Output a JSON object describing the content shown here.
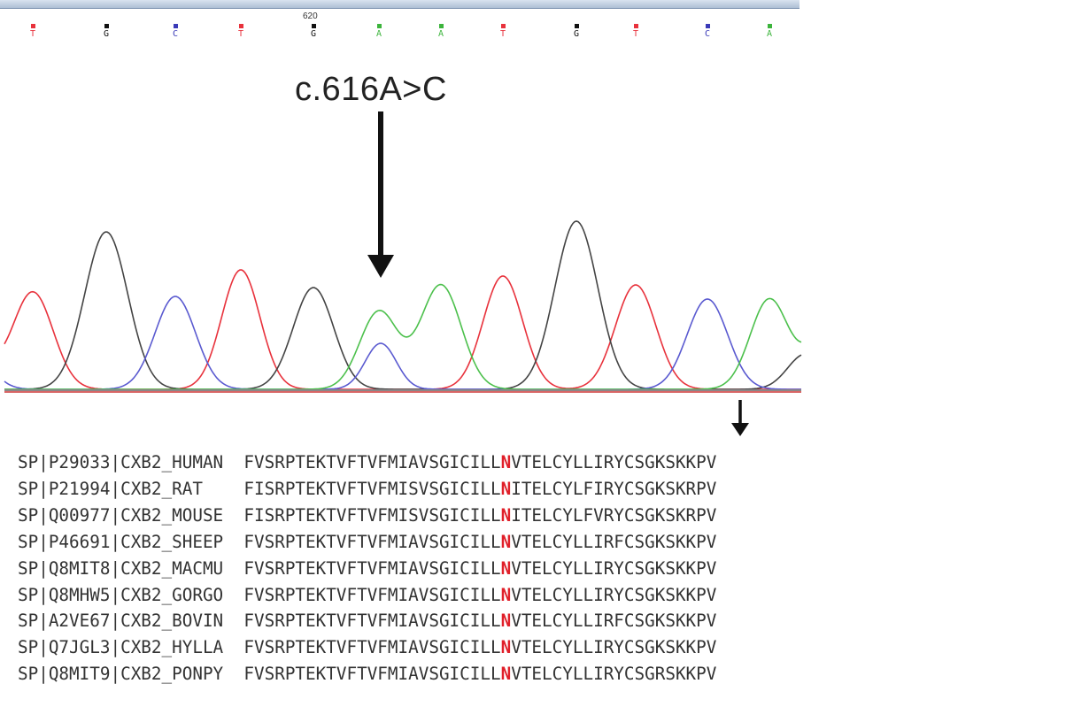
{
  "position_label": "620",
  "mutation_label": "c.616A>C",
  "base_calls": [
    {
      "letter": "T",
      "color": "#e8323c"
    },
    {
      "letter": "G",
      "color": "#111111"
    },
    {
      "letter": "C",
      "color": "#3a3ab8"
    },
    {
      "letter": "T",
      "color": "#e8323c"
    },
    {
      "letter": "G",
      "color": "#111111"
    },
    {
      "letter": "A",
      "color": "#3cb43c"
    },
    {
      "letter": "A",
      "color": "#3cb43c"
    },
    {
      "letter": "T",
      "color": "#e8323c"
    },
    {
      "letter": "G",
      "color": "#111111"
    },
    {
      "letter": "T",
      "color": "#e8323c"
    },
    {
      "letter": "C",
      "color": "#3a3ab8"
    },
    {
      "letter": "A",
      "color": "#3cb43c"
    }
  ],
  "trace_colors": {
    "T": "#e8323c",
    "G": "#444444",
    "C": "#5a5ad0",
    "A": "#4cc04c"
  },
  "highlight_color": "#e0202a",
  "alignment": [
    {
      "id": "SP|P29033|CXB2_HUMAN",
      "prefix": "FVSRPTEKTVFTVFMIAVSGICILL",
      "residue": "N",
      "suffix": "VTELCYLLIRYCSGKSKKPV"
    },
    {
      "id": "SP|P21994|CXB2_RAT",
      "prefix": "FISRPTEKTVFTVFMISVSGICILL",
      "residue": "N",
      "suffix": "ITELCYLFIRYCSGKSKRPV"
    },
    {
      "id": "SP|Q00977|CXB2_MOUSE",
      "prefix": "FISRPTEKTVFTVFMISVSGICILL",
      "residue": "N",
      "suffix": "ITELCYLFVRYCSGKSKRPV"
    },
    {
      "id": "SP|P46691|CXB2_SHEEP",
      "prefix": "FVSRPTEKTVFTVFMIAVSGICILL",
      "residue": "N",
      "suffix": "VTELCYLLIRFCSGKSKKPV"
    },
    {
      "id": "SP|Q8MIT8|CXB2_MACMU",
      "prefix": "FVSRPTEKTVFTVFMIAVSGICILL",
      "residue": "N",
      "suffix": "VTELCYLLIRYCSGKSKKPV"
    },
    {
      "id": "SP|Q8MHW5|CXB2_GORGO",
      "prefix": "FVSRPTEKTVFTVFMIAVSGICILL",
      "residue": "N",
      "suffix": "VTELCYLLIRYCSGKSKKPV"
    },
    {
      "id": "SP|A2VE67|CXB2_BOVIN",
      "prefix": "FVSRPTEKTVFTVFMIAVSGICILL",
      "residue": "N",
      "suffix": "VTELCYLLIRFCSGKSKKPV"
    },
    {
      "id": "SP|Q7JGL3|CXB2_HYLLA",
      "prefix": "FVSRPTEKTVFTVFMIAVSGICILL",
      "residue": "N",
      "suffix": "VTELCYLLIRYCSGKSKKPV"
    },
    {
      "id": "SP|Q8MIT9|CXB2_PONPY",
      "prefix": "FVSRPTEKTVFTVFMIAVSGICILL",
      "residue": "N",
      "suffix": "VTELCYLLIRYCSGRSKKPV"
    }
  ]
}
